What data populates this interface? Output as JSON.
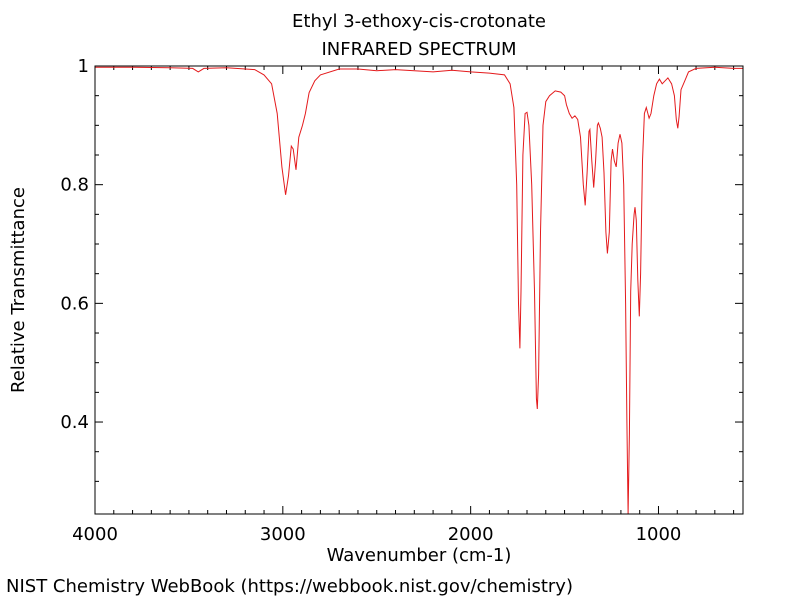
{
  "titles": {
    "compound": "Ethyl 3-ethoxy-cis-crotonate",
    "spectrum": "INFRARED SPECTRUM"
  },
  "footer": {
    "credit": "NIST Chemistry WebBook (https://webbook.nist.gov/chemistry)"
  },
  "colors": {
    "trace": "#e41a1c",
    "axis": "#000000",
    "background": "#ffffff"
  },
  "chart_data": {
    "type": "line",
    "title": "Ethyl 3-ethoxy-cis-crotonate",
    "subtitle": "INFRARED SPECTRUM",
    "xlabel": "Wavenumber (cm-1)",
    "ylabel": "Relative Transmittance",
    "xlim": [
      4000,
      550
    ],
    "ylim": [
      0.245,
      1.0
    ],
    "x_ticks": [
      4000,
      3000,
      2000,
      1000
    ],
    "x_tick_labels": [
      "4000",
      "3000",
      "2000",
      "1000"
    ],
    "y_ticks": [
      0.4,
      0.6,
      0.8,
      1.0
    ],
    "y_tick_labels": [
      "0.4",
      "0.6",
      "0.8",
      "1"
    ],
    "grid": false,
    "legend": "none",
    "series": [
      {
        "color": "#e41a1c",
        "points": [
          [
            4000,
            0.998
          ],
          [
            3800,
            0.998
          ],
          [
            3600,
            0.997
          ],
          [
            3480,
            0.996
          ],
          [
            3450,
            0.99
          ],
          [
            3420,
            0.996
          ],
          [
            3300,
            0.997
          ],
          [
            3150,
            0.994
          ],
          [
            3100,
            0.985
          ],
          [
            3060,
            0.97
          ],
          [
            3030,
            0.92
          ],
          [
            3005,
            0.83
          ],
          [
            2985,
            0.783
          ],
          [
            2970,
            0.815
          ],
          [
            2955,
            0.865
          ],
          [
            2945,
            0.86
          ],
          [
            2930,
            0.825
          ],
          [
            2915,
            0.88
          ],
          [
            2895,
            0.9
          ],
          [
            2880,
            0.92
          ],
          [
            2860,
            0.955
          ],
          [
            2830,
            0.975
          ],
          [
            2800,
            0.985
          ],
          [
            2700,
            0.995
          ],
          [
            2600,
            0.995
          ],
          [
            2500,
            0.992
          ],
          [
            2400,
            0.994
          ],
          [
            2300,
            0.992
          ],
          [
            2200,
            0.99
          ],
          [
            2100,
            0.993
          ],
          [
            2000,
            0.99
          ],
          [
            1900,
            0.988
          ],
          [
            1820,
            0.985
          ],
          [
            1790,
            0.97
          ],
          [
            1770,
            0.93
          ],
          [
            1755,
            0.8
          ],
          [
            1745,
            0.6
          ],
          [
            1738,
            0.524
          ],
          [
            1732,
            0.62
          ],
          [
            1722,
            0.85
          ],
          [
            1710,
            0.92
          ],
          [
            1700,
            0.922
          ],
          [
            1690,
            0.9
          ],
          [
            1675,
            0.8
          ],
          [
            1660,
            0.62
          ],
          [
            1650,
            0.44
          ],
          [
            1645,
            0.422
          ],
          [
            1638,
            0.48
          ],
          [
            1628,
            0.72
          ],
          [
            1615,
            0.9
          ],
          [
            1600,
            0.94
          ],
          [
            1580,
            0.95
          ],
          [
            1550,
            0.958
          ],
          [
            1520,
            0.956
          ],
          [
            1500,
            0.95
          ],
          [
            1490,
            0.935
          ],
          [
            1475,
            0.92
          ],
          [
            1460,
            0.912
          ],
          [
            1445,
            0.916
          ],
          [
            1430,
            0.91
          ],
          [
            1415,
            0.88
          ],
          [
            1400,
            0.8
          ],
          [
            1390,
            0.765
          ],
          [
            1380,
            0.82
          ],
          [
            1370,
            0.89
          ],
          [
            1365,
            0.893
          ],
          [
            1355,
            0.84
          ],
          [
            1345,
            0.795
          ],
          [
            1335,
            0.84
          ],
          [
            1325,
            0.9
          ],
          [
            1320,
            0.904
          ],
          [
            1310,
            0.895
          ],
          [
            1300,
            0.88
          ],
          [
            1290,
            0.82
          ],
          [
            1280,
            0.72
          ],
          [
            1272,
            0.684
          ],
          [
            1262,
            0.72
          ],
          [
            1252,
            0.84
          ],
          [
            1245,
            0.86
          ],
          [
            1235,
            0.84
          ],
          [
            1225,
            0.83
          ],
          [
            1215,
            0.87
          ],
          [
            1205,
            0.885
          ],
          [
            1195,
            0.87
          ],
          [
            1185,
            0.8
          ],
          [
            1175,
            0.6
          ],
          [
            1168,
            0.4
          ],
          [
            1162,
            0.245
          ],
          [
            1155,
            0.38
          ],
          [
            1148,
            0.62
          ],
          [
            1140,
            0.7
          ],
          [
            1130,
            0.75
          ],
          [
            1125,
            0.762
          ],
          [
            1118,
            0.74
          ],
          [
            1110,
            0.64
          ],
          [
            1102,
            0.578
          ],
          [
            1095,
            0.65
          ],
          [
            1085,
            0.84
          ],
          [
            1075,
            0.92
          ],
          [
            1065,
            0.93
          ],
          [
            1050,
            0.912
          ],
          [
            1040,
            0.92
          ],
          [
            1025,
            0.95
          ],
          [
            1010,
            0.97
          ],
          [
            995,
            0.978
          ],
          [
            980,
            0.97
          ],
          [
            965,
            0.975
          ],
          [
            950,
            0.98
          ],
          [
            930,
            0.97
          ],
          [
            915,
            0.95
          ],
          [
            905,
            0.91
          ],
          [
            897,
            0.895
          ],
          [
            890,
            0.915
          ],
          [
            880,
            0.96
          ],
          [
            860,
            0.975
          ],
          [
            840,
            0.99
          ],
          [
            800,
            0.996
          ],
          [
            700,
            0.998
          ],
          [
            600,
            0.996
          ],
          [
            550,
            0.996
          ]
        ]
      }
    ]
  }
}
